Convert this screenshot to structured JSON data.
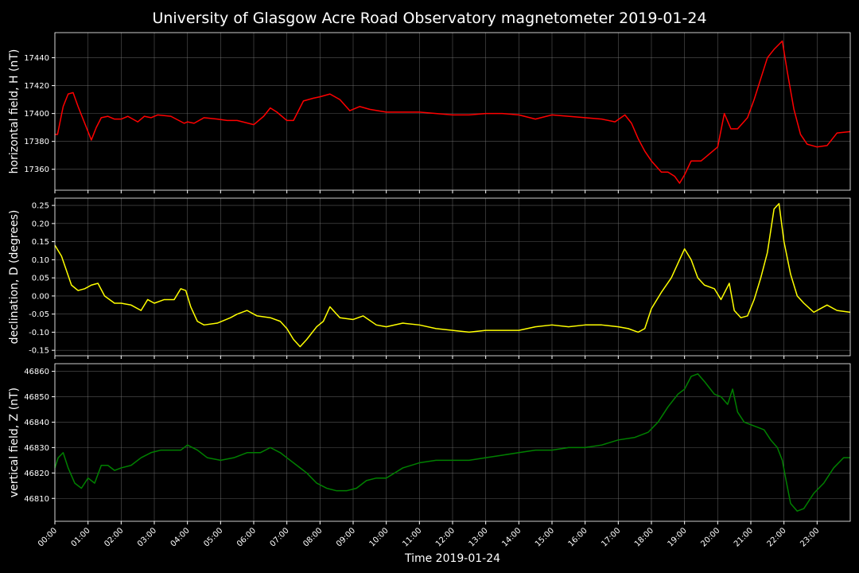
{
  "title": "University of Glasgow Acre Road Observatory magnetometer 2019-01-24",
  "chart_data": [
    {
      "type": "line",
      "ylabel": "horizontal field, H (nT)",
      "color": "#ff0000",
      "ylim": [
        17345,
        17458
      ],
      "yticks": [
        "17360",
        "17380",
        "17400",
        "17420",
        "17440"
      ],
      "xlim": [
        0,
        24
      ],
      "grid": true,
      "series": [
        {
          "x": [
            0,
            0.08,
            0.25,
            0.4,
            0.55,
            0.7,
            0.9,
            1.1,
            1.25,
            1.4,
            1.6,
            1.8,
            2.0,
            2.2,
            2.5,
            2.7,
            2.9,
            3.1,
            3.5,
            3.9,
            4.0,
            4.2,
            4.5,
            4.9,
            5.2,
            5.5,
            6.0,
            6.3,
            6.5,
            6.7,
            7.0,
            7.2,
            7.5,
            7.8,
            8.0,
            8.3,
            8.6,
            8.9,
            9.2,
            9.5,
            10.0,
            10.5,
            11.0,
            11.5,
            12.0,
            12.5,
            13.0,
            13.5,
            14.0,
            14.5,
            15.0,
            15.5,
            16.0,
            16.5,
            16.9,
            17.2,
            17.4,
            17.6,
            17.8,
            18.0,
            18.3,
            18.5,
            18.7,
            18.85,
            19.0,
            19.2,
            19.5,
            19.8,
            20.0,
            20.2,
            20.4,
            20.6,
            20.9,
            21.1,
            21.3,
            21.5,
            21.7,
            21.95,
            22.1,
            22.3,
            22.5,
            22.7,
            23.0,
            23.3,
            23.6,
            24.0
          ],
          "values": [
            17385,
            17385,
            17405,
            17414,
            17415,
            17405,
            17393,
            17381,
            17390,
            17397,
            17398,
            17396,
            17396,
            17398,
            17394,
            17398,
            17397,
            17399,
            17398,
            17393,
            17394,
            17393,
            17397,
            17396,
            17395,
            17395,
            17392,
            17398,
            17404,
            17401,
            17395,
            17395,
            17409,
            17411,
            17412,
            17414,
            17410,
            17402,
            17405,
            17403,
            17401,
            17401,
            17401,
            17400,
            17399,
            17399,
            17400,
            17400,
            17399,
            17396,
            17399,
            17398,
            17397,
            17396,
            17394,
            17399,
            17393,
            17382,
            17373,
            17366,
            17358,
            17358,
            17355,
            17350,
            17356,
            17366,
            17366,
            17372,
            17376,
            17400,
            17389,
            17389,
            17397,
            17410,
            17425,
            17440,
            17446,
            17452,
            17430,
            17403,
            17385,
            17378,
            17376,
            17377,
            17386,
            17387
          ]
        }
      ]
    },
    {
      "type": "line",
      "ylabel": "declination, D (degrees)",
      "color": "#ffff00",
      "ylim": [
        -0.165,
        0.27
      ],
      "yticks": [
        "-0.15",
        "-0.10",
        "-0.05",
        "0.00",
        "0.05",
        "0.10",
        "0.15",
        "0.20",
        "0.25"
      ],
      "xlim": [
        0,
        24
      ],
      "grid": true,
      "series": [
        {
          "x": [
            0,
            0.2,
            0.35,
            0.5,
            0.7,
            0.9,
            1.1,
            1.3,
            1.5,
            1.8,
            2.0,
            2.3,
            2.6,
            2.8,
            3.0,
            3.3,
            3.6,
            3.8,
            3.95,
            4.1,
            4.3,
            4.5,
            4.9,
            5.3,
            5.5,
            5.8,
            6.1,
            6.5,
            6.8,
            7.0,
            7.2,
            7.4,
            7.6,
            7.9,
            8.1,
            8.3,
            8.6,
            9.0,
            9.3,
            9.7,
            10.0,
            10.5,
            11.0,
            11.5,
            12.0,
            12.5,
            13.0,
            13.5,
            14.0,
            14.5,
            15.0,
            15.5,
            16.0,
            16.5,
            17.0,
            17.3,
            17.6,
            17.8,
            18.0,
            18.3,
            18.6,
            18.8,
            19.0,
            19.2,
            19.4,
            19.6,
            19.9,
            20.1,
            20.35,
            20.5,
            20.7,
            20.9,
            21.1,
            21.3,
            21.5,
            21.7,
            21.85,
            22.0,
            22.2,
            22.4,
            22.6,
            22.9,
            23.1,
            23.3,
            23.6,
            24.0
          ],
          "values": [
            0.14,
            0.11,
            0.07,
            0.03,
            0.015,
            0.02,
            0.03,
            0.035,
            0.0,
            -0.02,
            -0.02,
            -0.025,
            -0.04,
            -0.01,
            -0.02,
            -0.01,
            -0.01,
            0.02,
            0.015,
            -0.03,
            -0.07,
            -0.08,
            -0.075,
            -0.06,
            -0.05,
            -0.04,
            -0.055,
            -0.06,
            -0.07,
            -0.09,
            -0.12,
            -0.14,
            -0.12,
            -0.085,
            -0.07,
            -0.03,
            -0.06,
            -0.065,
            -0.055,
            -0.08,
            -0.085,
            -0.075,
            -0.08,
            -0.09,
            -0.095,
            -0.1,
            -0.095,
            -0.095,
            -0.095,
            -0.085,
            -0.08,
            -0.085,
            -0.08,
            -0.08,
            -0.085,
            -0.09,
            -0.1,
            -0.09,
            -0.035,
            0.01,
            0.05,
            0.09,
            0.13,
            0.1,
            0.05,
            0.03,
            0.02,
            -0.01,
            0.035,
            -0.04,
            -0.06,
            -0.055,
            -0.01,
            0.05,
            0.12,
            0.24,
            0.255,
            0.15,
            0.06,
            0.0,
            -0.02,
            -0.045,
            -0.035,
            -0.025,
            -0.04,
            -0.045
          ]
        }
      ]
    },
    {
      "type": "line",
      "ylabel": "vertical field, Z (nT)",
      "color": "#008000",
      "xlabel": "Time 2019-01-24",
      "ylim": [
        46801,
        46863
      ],
      "yticks": [
        "46810",
        "46820",
        "46830",
        "46840",
        "46850",
        "46860"
      ],
      "xlim": [
        0,
        24
      ],
      "xticks": [
        "00:00",
        "01:00",
        "02:00",
        "03:00",
        "04:00",
        "05:00",
        "06:00",
        "07:00",
        "08:00",
        "09:00",
        "10:00",
        "11:00",
        "12:00",
        "13:00",
        "14:00",
        "15:00",
        "16:00",
        "17:00",
        "18:00",
        "19:00",
        "20:00",
        "21:00",
        "22:00",
        "23:00"
      ],
      "grid": true,
      "series": [
        {
          "x": [
            0,
            0.1,
            0.25,
            0.4,
            0.6,
            0.8,
            1.0,
            1.2,
            1.4,
            1.6,
            1.8,
            2.0,
            2.3,
            2.6,
            2.9,
            3.2,
            3.5,
            3.8,
            4.0,
            4.3,
            4.6,
            5.0,
            5.4,
            5.8,
            6.2,
            6.5,
            6.8,
            7.0,
            7.3,
            7.6,
            7.9,
            8.2,
            8.5,
            8.8,
            9.1,
            9.4,
            9.7,
            10.0,
            10.5,
            11.0,
            11.5,
            12.0,
            12.5,
            13.0,
            13.5,
            14.0,
            14.5,
            15.0,
            15.5,
            16.0,
            16.5,
            17.0,
            17.5,
            17.9,
            18.2,
            18.5,
            18.8,
            19.0,
            19.2,
            19.4,
            19.6,
            19.9,
            20.1,
            20.3,
            20.45,
            20.6,
            20.8,
            21.0,
            21.2,
            21.4,
            21.6,
            21.8,
            21.95,
            22.05,
            22.2,
            22.4,
            22.6,
            22.9,
            23.2,
            23.5,
            23.8,
            24.0
          ],
          "values": [
            46822,
            46826,
            46828,
            46822,
            46816,
            46814,
            46818,
            46816,
            46823,
            46823,
            46821,
            46822,
            46823,
            46826,
            46828,
            46829,
            46829,
            46829,
            46831,
            46829,
            46826,
            46825,
            46826,
            46828,
            46828,
            46830,
            46828,
            46826,
            46823,
            46820,
            46816,
            46814,
            46813,
            46813,
            46814,
            46817,
            46818,
            46818,
            46822,
            46824,
            46825,
            46825,
            46825,
            46826,
            46827,
            46828,
            46829,
            46829,
            46830,
            46830,
            46831,
            46833,
            46834,
            46836,
            46840,
            46846,
            46851,
            46853,
            46858,
            46859,
            46856,
            46851,
            46850,
            46847,
            46853,
            46844,
            46840,
            46839,
            46838,
            46837,
            46833,
            46830,
            46825,
            46818,
            46808,
            46805,
            46806,
            46812,
            46816,
            46822,
            46826,
            46826
          ]
        }
      ]
    }
  ]
}
